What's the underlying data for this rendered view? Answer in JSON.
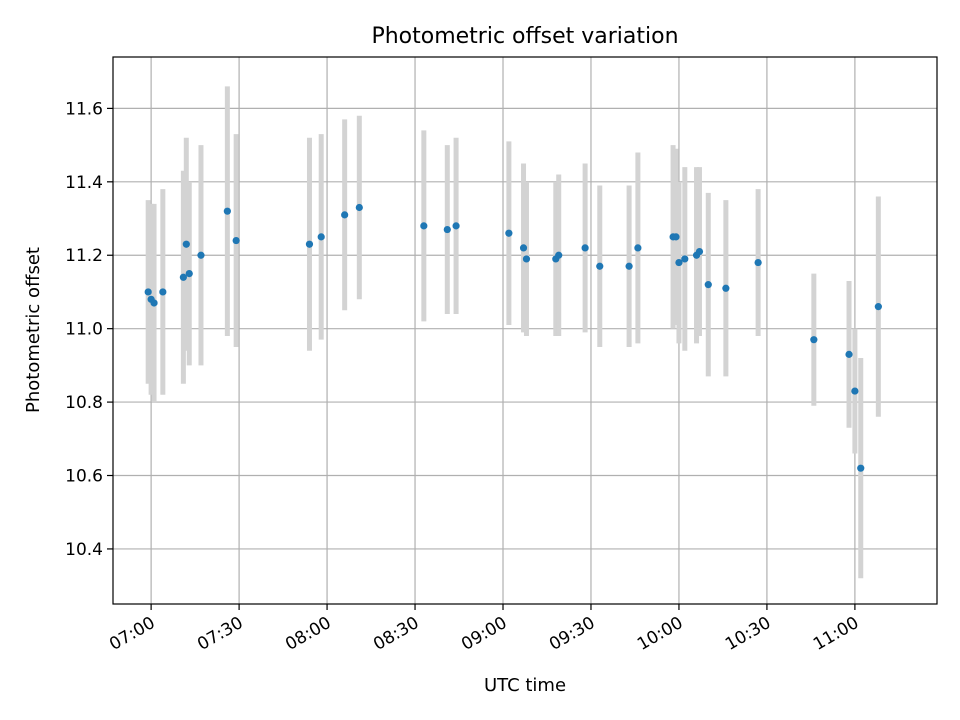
{
  "chart_data": {
    "type": "scatter",
    "title": "Photometric offset variation",
    "xlabel": "UTC time",
    "ylabel": "Photometric offset",
    "x_tick_labels": [
      "07:00",
      "07:30",
      "08:00",
      "08:30",
      "09:00",
      "09:30",
      "10:00",
      "10:30",
      "11:00"
    ],
    "x_ticks": [
      "07:00",
      "07:30",
      "08:00",
      "08:30",
      "09:00",
      "09:30",
      "10:00",
      "10:30",
      "11:00"
    ],
    "y_tick_labels": [
      "10.4",
      "10.6",
      "10.8",
      "11.0",
      "11.2",
      "11.4",
      "11.6"
    ],
    "y_ticks": [
      10.4,
      10.6,
      10.8,
      11.0,
      11.2,
      11.4,
      11.6
    ],
    "xlim": [
      "06:47",
      "11:28"
    ],
    "ylim": [
      10.25,
      11.74
    ],
    "grid": true,
    "colors": {
      "point": "#1f77b4",
      "errorbar": "#d3d3d3",
      "grid": "#b0b0b0"
    },
    "series": [
      {
        "x": [
          "06:59",
          "07:00",
          "07:01",
          "07:04",
          "07:11",
          "07:12",
          "07:13",
          "07:17",
          "07:26",
          "07:29",
          "07:54",
          "07:58",
          "08:06",
          "08:11",
          "08:33",
          "08:41",
          "08:44",
          "09:02",
          "09:07",
          "09:08",
          "09:18",
          "09:19",
          "09:28",
          "09:33",
          "09:43",
          "09:46",
          "09:58",
          "09:59",
          "10:00",
          "10:02",
          "10:06",
          "10:07",
          "10:10",
          "10:16",
          "10:27",
          "10:46",
          "10:58",
          "11:00",
          "11:02",
          "11:08"
        ],
        "y": [
          11.1,
          11.08,
          11.07,
          11.1,
          11.14,
          11.23,
          11.15,
          11.2,
          11.32,
          11.24,
          11.23,
          11.25,
          11.31,
          11.33,
          11.28,
          11.27,
          11.28,
          11.26,
          11.22,
          11.19,
          11.19,
          11.2,
          11.22,
          11.17,
          11.17,
          11.22,
          11.25,
          11.25,
          11.18,
          11.19,
          11.2,
          11.21,
          11.12,
          11.11,
          11.18,
          10.97,
          10.93,
          10.83,
          10.62,
          11.06
        ],
        "yerr": [
          0.25,
          0.26,
          0.27,
          0.28,
          0.29,
          0.29,
          0.25,
          0.3,
          0.34,
          0.29,
          0.29,
          0.28,
          0.26,
          0.25,
          0.26,
          0.23,
          0.24,
          0.25,
          0.23,
          0.21,
          0.21,
          0.22,
          0.23,
          0.22,
          0.22,
          0.26,
          0.25,
          0.24,
          0.22,
          0.25,
          0.24,
          0.23,
          0.25,
          0.24,
          0.2,
          0.18,
          0.2,
          0.17,
          0.3,
          0.3
        ]
      }
    ]
  }
}
